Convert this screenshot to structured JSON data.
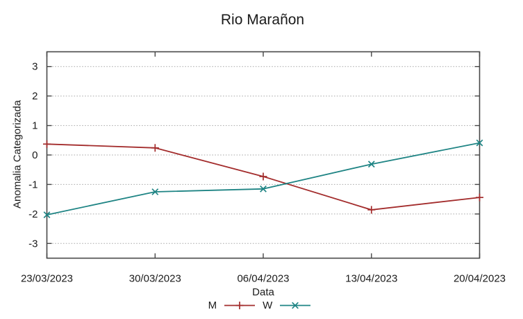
{
  "chart_data": {
    "type": "line",
    "title": "Rio Marañon",
    "xlabel": "Data",
    "ylabel": "Anomalia Categorizada",
    "categories": [
      "23/03/2023",
      "30/03/2023",
      "06/04/2023",
      "13/04/2023",
      "20/04/2023"
    ],
    "series": [
      {
        "name": "M",
        "color": "#a32c2c",
        "marker": "plus",
        "values": [
          0.37,
          0.24,
          -0.73,
          -1.86,
          -1.44
        ]
      },
      {
        "name": "W",
        "color": "#1e8484",
        "marker": "cross",
        "values": [
          -2.03,
          -1.25,
          -1.15,
          -0.31,
          0.41
        ]
      }
    ],
    "ylim": [
      -3.5,
      3.5
    ],
    "yticks": [
      -3,
      -2,
      -1,
      0,
      1,
      2,
      3
    ],
    "grid": true,
    "legend_position": "bottom-center"
  },
  "colors": {
    "background": "#ffffff",
    "grid": "#a9a9a9",
    "axis": "#474747",
    "text": "#1a1a1a"
  }
}
